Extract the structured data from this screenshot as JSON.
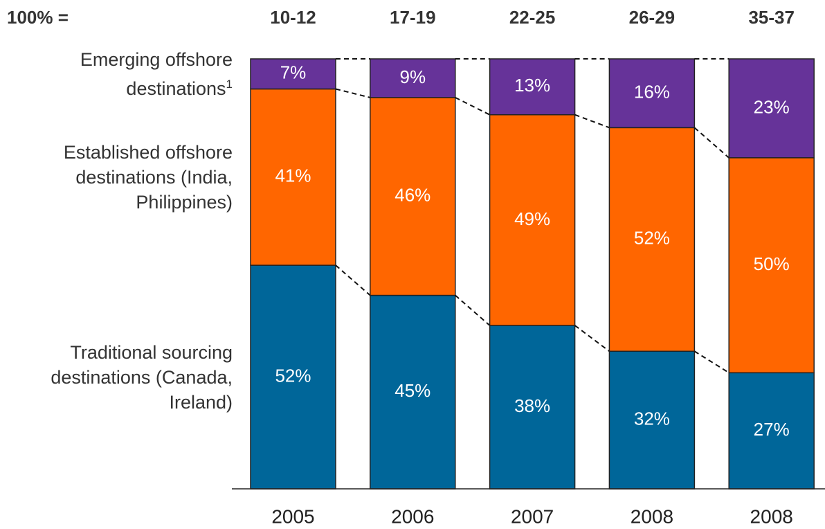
{
  "chart_data": {
    "type": "stacked_bar_100",
    "total_label": "100% =",
    "categories": [
      "2005",
      "2006",
      "2007",
      "2008",
      "2008"
    ],
    "totals": [
      "10-12",
      "17-19",
      "22-25",
      "26-29",
      "35-37"
    ],
    "ylim": [
      0,
      100
    ],
    "series": [
      {
        "name": "Traditional sourcing destinations (Canada, Ireland)",
        "color": "#006699",
        "values": [
          52,
          45,
          38,
          32,
          27
        ],
        "value_labels": [
          "52%",
          "45%",
          "38%",
          "32%",
          "27%"
        ]
      },
      {
        "name": "Established offshore destinations (India, Philippines)",
        "color": "#ff6600",
        "values": [
          41,
          46,
          49,
          52,
          50
        ],
        "value_labels": [
          "41%",
          "46%",
          "49%",
          "52%",
          "50%"
        ]
      },
      {
        "name": "Emerging offshore destinations",
        "footnote": "1",
        "color": "#663399",
        "values": [
          7,
          9,
          13,
          16,
          23
        ],
        "value_labels": [
          "7%",
          "9%",
          "13%",
          "16%",
          "23%"
        ]
      }
    ]
  }
}
